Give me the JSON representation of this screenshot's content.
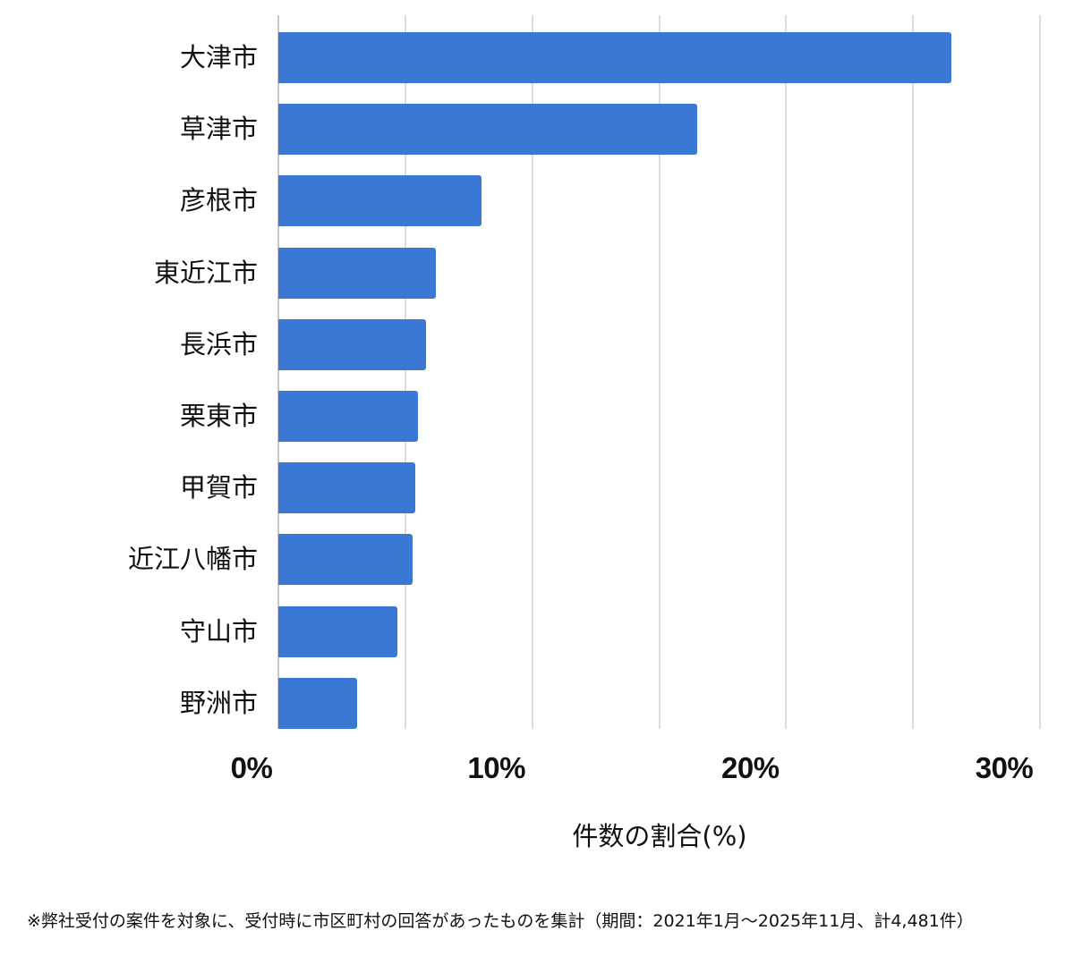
{
  "chart_data": {
    "type": "bar",
    "orientation": "horizontal",
    "title": "",
    "categories": [
      "大津市",
      "草津市",
      "彦根市",
      "東近江市",
      "長浜市",
      "栗東市",
      "甲賀市",
      "近江八幡市",
      "守山市",
      "野洲市"
    ],
    "values": [
      26.5,
      16.5,
      8.0,
      6.2,
      5.8,
      5.5,
      5.4,
      5.3,
      4.7,
      3.1
    ],
    "xlabel": "件数の割合(%)",
    "ylabel": "",
    "xlim": [
      0,
      30
    ],
    "xticks": [
      "0%",
      "10%",
      "20%",
      "30%"
    ],
    "grid": true,
    "legend": null,
    "bar_color": "#3b78d4",
    "footnote": "※弊社受付の案件を対象に、受付時に市区町村の回答があったものを集計（期間：2021年1月〜2025年11月、計4,481件）"
  },
  "axis": {
    "x_title": "件数の割合(%)",
    "ticks": [
      {
        "label": "0%",
        "value": 0
      },
      {
        "label": "10%",
        "value": 10
      },
      {
        "label": "20%",
        "value": 20
      },
      {
        "label": "30%",
        "value": 30
      }
    ]
  },
  "bars": [
    {
      "label": "大津市",
      "value": 26.5
    },
    {
      "label": "草津市",
      "value": 16.5
    },
    {
      "label": "彦根市",
      "value": 8.0
    },
    {
      "label": "東近江市",
      "value": 6.2
    },
    {
      "label": "長浜市",
      "value": 5.8
    },
    {
      "label": "栗東市",
      "value": 5.5
    },
    {
      "label": "甲賀市",
      "value": 5.4
    },
    {
      "label": "近江八幡市",
      "value": 5.3
    },
    {
      "label": "守山市",
      "value": 4.7
    },
    {
      "label": "野洲市",
      "value": 3.1
    }
  ],
  "footnote": "※弊社受付の案件を対象に、受付時に市区町村の回答があったものを集計（期間：2021年1月〜2025年11月、計4,481件）"
}
